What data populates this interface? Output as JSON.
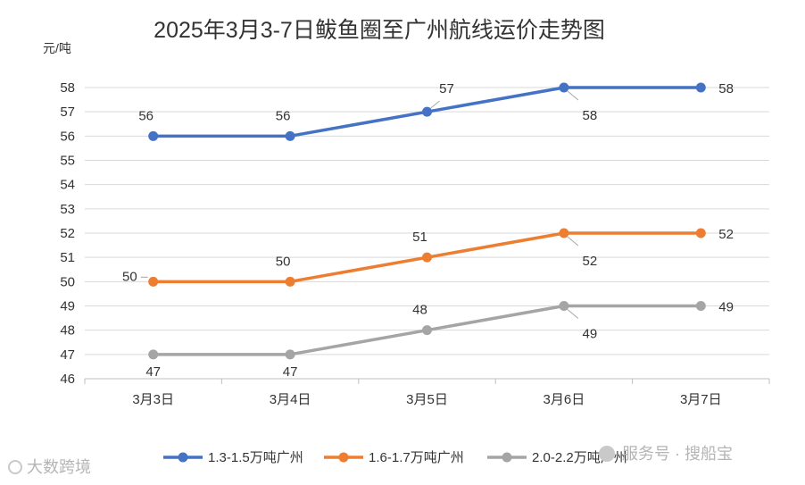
{
  "chart_data": {
    "type": "line",
    "title": "2025年3月3-7日鲅鱼圈至广州航线运价走势图",
    "ylabel": "元/吨",
    "categories": [
      "3月3日",
      "3月4日",
      "3月5日",
      "3月6日",
      "3月7日"
    ],
    "ylim": [
      46,
      58
    ],
    "yticks": [
      46,
      47,
      48,
      49,
      50,
      51,
      52,
      53,
      54,
      55,
      56,
      57,
      58
    ],
    "grid": true,
    "legend_position": "bottom",
    "series": [
      {
        "name": "1.3-1.5万吨广州",
        "values": [
          56,
          56,
          57,
          58,
          58
        ],
        "color": "#4472c4",
        "label_positions": [
          "above",
          "above",
          "above-right",
          "below-right",
          "right"
        ]
      },
      {
        "name": "1.6-1.7万吨广州",
        "values": [
          50,
          50,
          51,
          52,
          52
        ],
        "color": "#ed7d31",
        "label_positions": [
          "left",
          "above",
          "above",
          "below-right",
          "right"
        ]
      },
      {
        "name": "2.0-2.2万吨广州",
        "values": [
          47,
          47,
          48,
          49,
          49
        ],
        "color": "#a5a5a5",
        "label_positions": [
          "below",
          "below",
          "above",
          "below-right",
          "right"
        ]
      }
    ]
  },
  "watermarks": {
    "left": "大数跨境",
    "right": "服务号 · 搜船宝"
  }
}
